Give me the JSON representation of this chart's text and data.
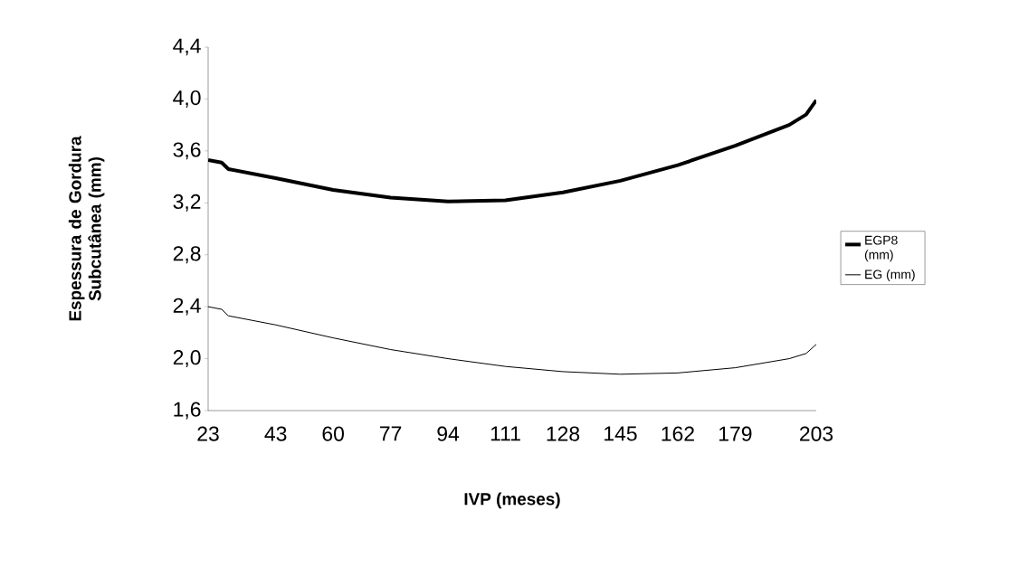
{
  "chart_data": {
    "type": "line",
    "xlabel": "IVP (meses)",
    "ylabel": "Espessura de Gordura Subcutânea (mm)",
    "xlim": [
      23,
      203
    ],
    "xticks": [
      23,
      43,
      60,
      77,
      94,
      111,
      128,
      145,
      162,
      179,
      203
    ],
    "ylim": [
      1.6,
      4.4
    ],
    "yticks": [
      {
        "value": 1.6,
        "label": "1,6"
      },
      {
        "value": 2.0,
        "label": "2,0"
      },
      {
        "value": 2.4,
        "label": "2,4"
      },
      {
        "value": 2.8,
        "label": "2,8"
      },
      {
        "value": 3.2,
        "label": "3,2"
      },
      {
        "value": 3.6,
        "label": "3,6"
      },
      {
        "value": 4.0,
        "label": "4,0"
      },
      {
        "value": 4.4,
        "label": "4,4"
      }
    ],
    "x": [
      23,
      27,
      29,
      43,
      60,
      77,
      94,
      111,
      128,
      145,
      162,
      179,
      195,
      200,
      203
    ],
    "series": [
      {
        "name": "EGP8 (mm)",
        "color": "#000000",
        "values": [
          3.53,
          3.51,
          3.46,
          3.39,
          3.3,
          3.24,
          3.21,
          3.22,
          3.28,
          3.37,
          3.49,
          3.64,
          3.8,
          3.88,
          3.99
        ]
      },
      {
        "name": "EG (mm)",
        "color": "#000000",
        "values": [
          2.4,
          2.38,
          2.33,
          2.26,
          2.16,
          2.07,
          2.0,
          1.94,
          1.9,
          1.88,
          1.89,
          1.93,
          2.0,
          2.04,
          2.11
        ]
      }
    ],
    "grid": false,
    "legend": "right"
  }
}
